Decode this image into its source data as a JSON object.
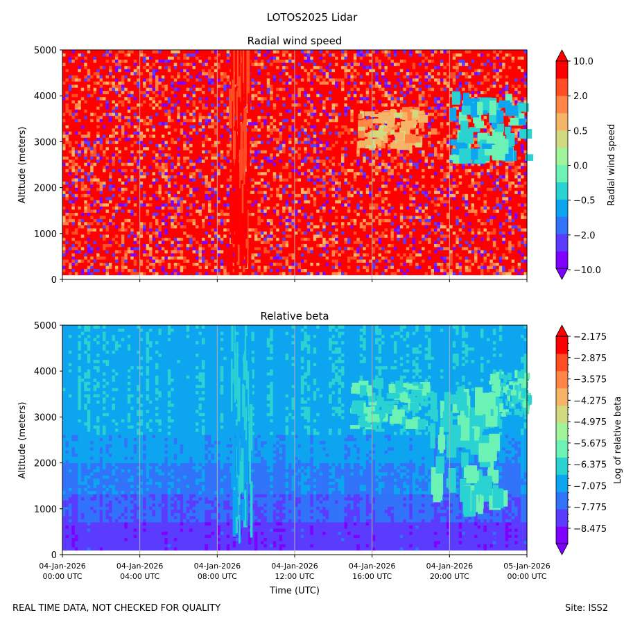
{
  "figure": {
    "suptitle": "LOTOS2025 Lidar",
    "footer_left": "REAL TIME DATA, NOT CHECKED FOR QUALITY",
    "footer_right": "Site: ISS2"
  },
  "chart_data": [
    {
      "type": "heatmap",
      "title": "Radial wind speed",
      "ylabel": "Altitude (meters)",
      "xlabel": "",
      "xlim_hours": [
        0,
        24
      ],
      "ylim": [
        0,
        5000
      ],
      "yticks": [
        0,
        1000,
        2000,
        3000,
        4000,
        5000
      ],
      "ytick_labels": [
        "0",
        "1000",
        "2000",
        "3000",
        "4000",
        "5000"
      ],
      "xticks_hours": [
        0,
        4,
        8,
        12,
        16,
        20,
        24
      ],
      "grid": "vertical lines at x ticks",
      "colorbar": {
        "label": "Radial wind speed",
        "extend": "both",
        "tick_labels": [
          "10.0",
          "2.0",
          "0.5",
          "0.0",
          "−0.5",
          "−2.0",
          "−10.0"
        ],
        "colors": [
          "#7f00ff",
          "#5b3cfe",
          "#3173f9",
          "#0ea5f0",
          "#2ad2d2",
          "#6cf2b5",
          "#a0f49a",
          "#d2d97f",
          "#f6b466",
          "#ff8646",
          "#ff4d24",
          "#ff0000"
        ]
      },
      "features": [
        {
          "name": "cloud layer",
          "x_hours": [
            15.2,
            18.5
          ],
          "alt": [
            2800,
            3650
          ],
          "value": "0.5"
        },
        {
          "name": "cloud layer",
          "x_hours": [
            20.0,
            24.0
          ],
          "alt": [
            2500,
            3850
          ],
          "value": "-0.5"
        },
        {
          "name": "rain band",
          "x_hours": [
            8.6,
            9.6
          ],
          "alt": [
            100,
            5000
          ],
          "value": "10.0"
        }
      ]
    },
    {
      "type": "heatmap",
      "title": "Relative beta",
      "ylabel": "Altitude (meters)",
      "xlabel": "Time (UTC)",
      "xlim_hours": [
        0,
        24
      ],
      "ylim": [
        0,
        5000
      ],
      "yticks": [
        0,
        1000,
        2000,
        3000,
        4000,
        5000
      ],
      "ytick_labels": [
        "0",
        "1000",
        "2000",
        "3000",
        "4000",
        "5000"
      ],
      "xticks_hours": [
        0,
        4,
        8,
        12,
        16,
        20,
        24
      ],
      "xtick_labels": [
        [
          "04-Jan-2026",
          "00:00 UTC"
        ],
        [
          "04-Jan-2026",
          "04:00 UTC"
        ],
        [
          "04-Jan-2026",
          "08:00 UTC"
        ],
        [
          "04-Jan-2026",
          "12:00 UTC"
        ],
        [
          "04-Jan-2026",
          "16:00 UTC"
        ],
        [
          "04-Jan-2026",
          "20:00 UTC"
        ],
        [
          "05-Jan-2026",
          "00:00 UTC"
        ]
      ],
      "grid": "vertical lines at x ticks",
      "colorbar": {
        "label": "Log of relative beta",
        "extend": "both",
        "tick_labels": [
          "−2.175",
          "−2.875",
          "−3.575",
          "−4.275",
          "−4.975",
          "−5.675",
          "−6.375",
          "−7.075",
          "−7.775",
          "−8.475"
        ],
        "colors": [
          "#7f00ff",
          "#5b3cfe",
          "#3173f9",
          "#0ea5f0",
          "#2ad2d2",
          "#6cf2b5",
          "#a0f49a",
          "#d2d97f",
          "#f6b466",
          "#ff8646",
          "#ff4d24",
          "#ff0000"
        ]
      },
      "features": [
        {
          "name": "cloud layer",
          "x_hours": [
            14.8,
            18.5
          ],
          "alt": [
            2700,
            3650
          ],
          "value": "-6.4"
        },
        {
          "name": "cloud",
          "x_hours": [
            19.0,
            22.5
          ],
          "alt": [
            800,
            3300
          ],
          "value": "-6.4"
        },
        {
          "name": "cloud layer",
          "x_hours": [
            22.0,
            24.0
          ],
          "alt": [
            3000,
            3850
          ],
          "value": "-6.4"
        },
        {
          "name": "aerosol column",
          "x_hours": [
            8.7,
            9.7
          ],
          "alt": [
            100,
            5000
          ],
          "value": "-7.1"
        }
      ]
    }
  ]
}
